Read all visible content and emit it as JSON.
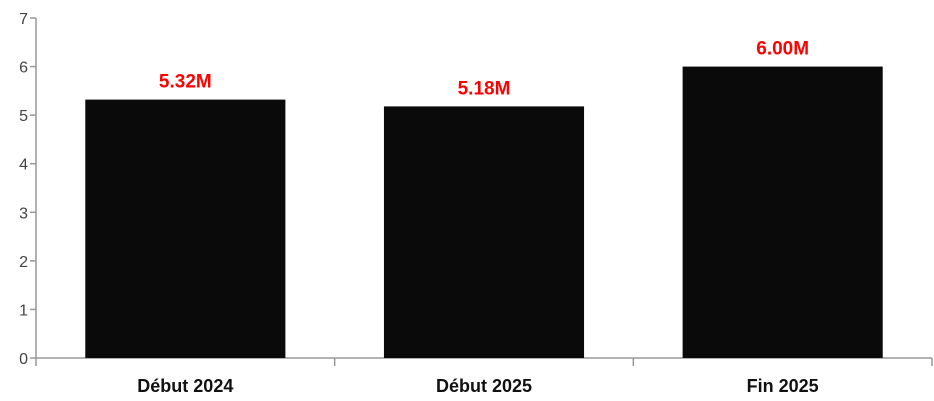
{
  "chart_data": {
    "type": "bar",
    "categories": [
      "Début 2024",
      "Début 2025",
      "Fin 2025"
    ],
    "values": [
      5.32,
      5.18,
      6.0
    ],
    "data_labels": [
      "5.32M",
      "5.18M",
      "6.00M"
    ],
    "title": "",
    "xlabel": "",
    "ylabel": "",
    "ylim": [
      0,
      7
    ],
    "yticks": [
      0,
      1,
      2,
      3,
      4,
      5,
      6,
      7
    ],
    "grid": false,
    "legend": "none",
    "bar_color": "#0a0a0a",
    "label_color": "#ff0000"
  }
}
